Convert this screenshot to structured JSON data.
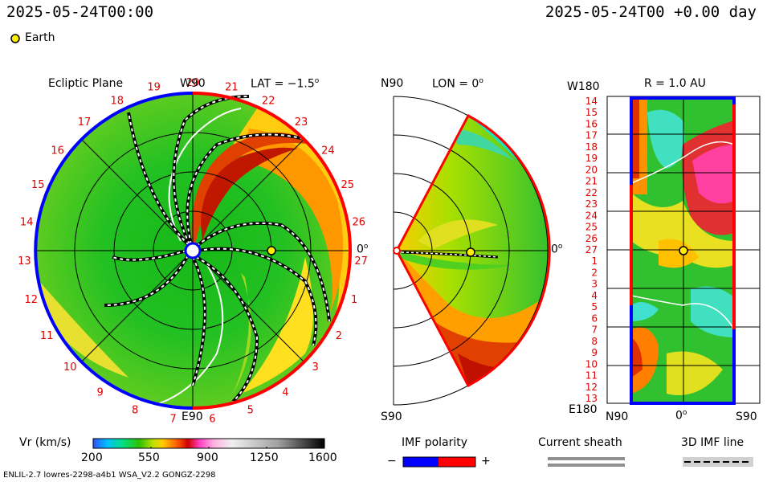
{
  "header": {
    "timestamp_left": "2025-05-24T00:00",
    "timestamp_right": "2025-05-24T00 +0.00 day",
    "legend_marker_label": "Earth"
  },
  "panels": {
    "ecliptic": {
      "title": "Ecliptic Plane",
      "lat_label": "LAT = −1.5",
      "top_label": "W90",
      "bottom_label": "E90",
      "right_label": "0",
      "carrington_labels": [
        "19",
        "20",
        "21",
        "22",
        "23",
        "24",
        "25",
        "26",
        "27",
        "1",
        "2",
        "3",
        "4",
        "5",
        "6",
        "7",
        "8",
        "9",
        "10",
        "11",
        "12",
        "13",
        "14",
        "15",
        "16",
        "17",
        "18"
      ]
    },
    "meridional": {
      "lon_label": "LON = 0",
      "top_label": "N90",
      "bottom_label": "S90",
      "right_label": "0"
    },
    "synoptic": {
      "title": "R = 1.0 AU",
      "top_left_label": "W180",
      "bottom_left_label": "E180",
      "x_labels": [
        "N90",
        "0",
        "S90"
      ],
      "y_labels": [
        "14",
        "15",
        "16",
        "17",
        "18",
        "19",
        "20",
        "21",
        "22",
        "23",
        "24",
        "25",
        "26",
        "27",
        "1",
        "2",
        "3",
        "4",
        "5",
        "6",
        "7",
        "8",
        "9",
        "10",
        "11",
        "12",
        "13"
      ]
    }
  },
  "colorbar": {
    "label": "Vr (km/s)",
    "ticks": [
      "200",
      "550",
      "900",
      "1250",
      "1600"
    ],
    "min": 200,
    "max": 1600
  },
  "legend": {
    "imf_polarity_title": "IMF polarity",
    "imf_minus": "−",
    "imf_plus": "+",
    "current_sheath_title": "Current sheath",
    "imf_line_title": "3D IMF line"
  },
  "footer": {
    "model_info": "ENLIL-2.7 lowres-2298-a4b1 WSA_V2.2 GONGZ-2298"
  },
  "colors": {
    "polarity_negative": "#0000ff",
    "polarity_positive": "#ff0000",
    "earth_marker": "#ffee00",
    "sheath_gray": "#909090"
  },
  "chart_data": {
    "type": "heatmap",
    "quantity": "Vr (km/s)",
    "range": [
      200,
      1600
    ],
    "earth": {
      "radius_au": 1.0,
      "lon_deg": 0,
      "lat_deg": -1.5
    }
  }
}
